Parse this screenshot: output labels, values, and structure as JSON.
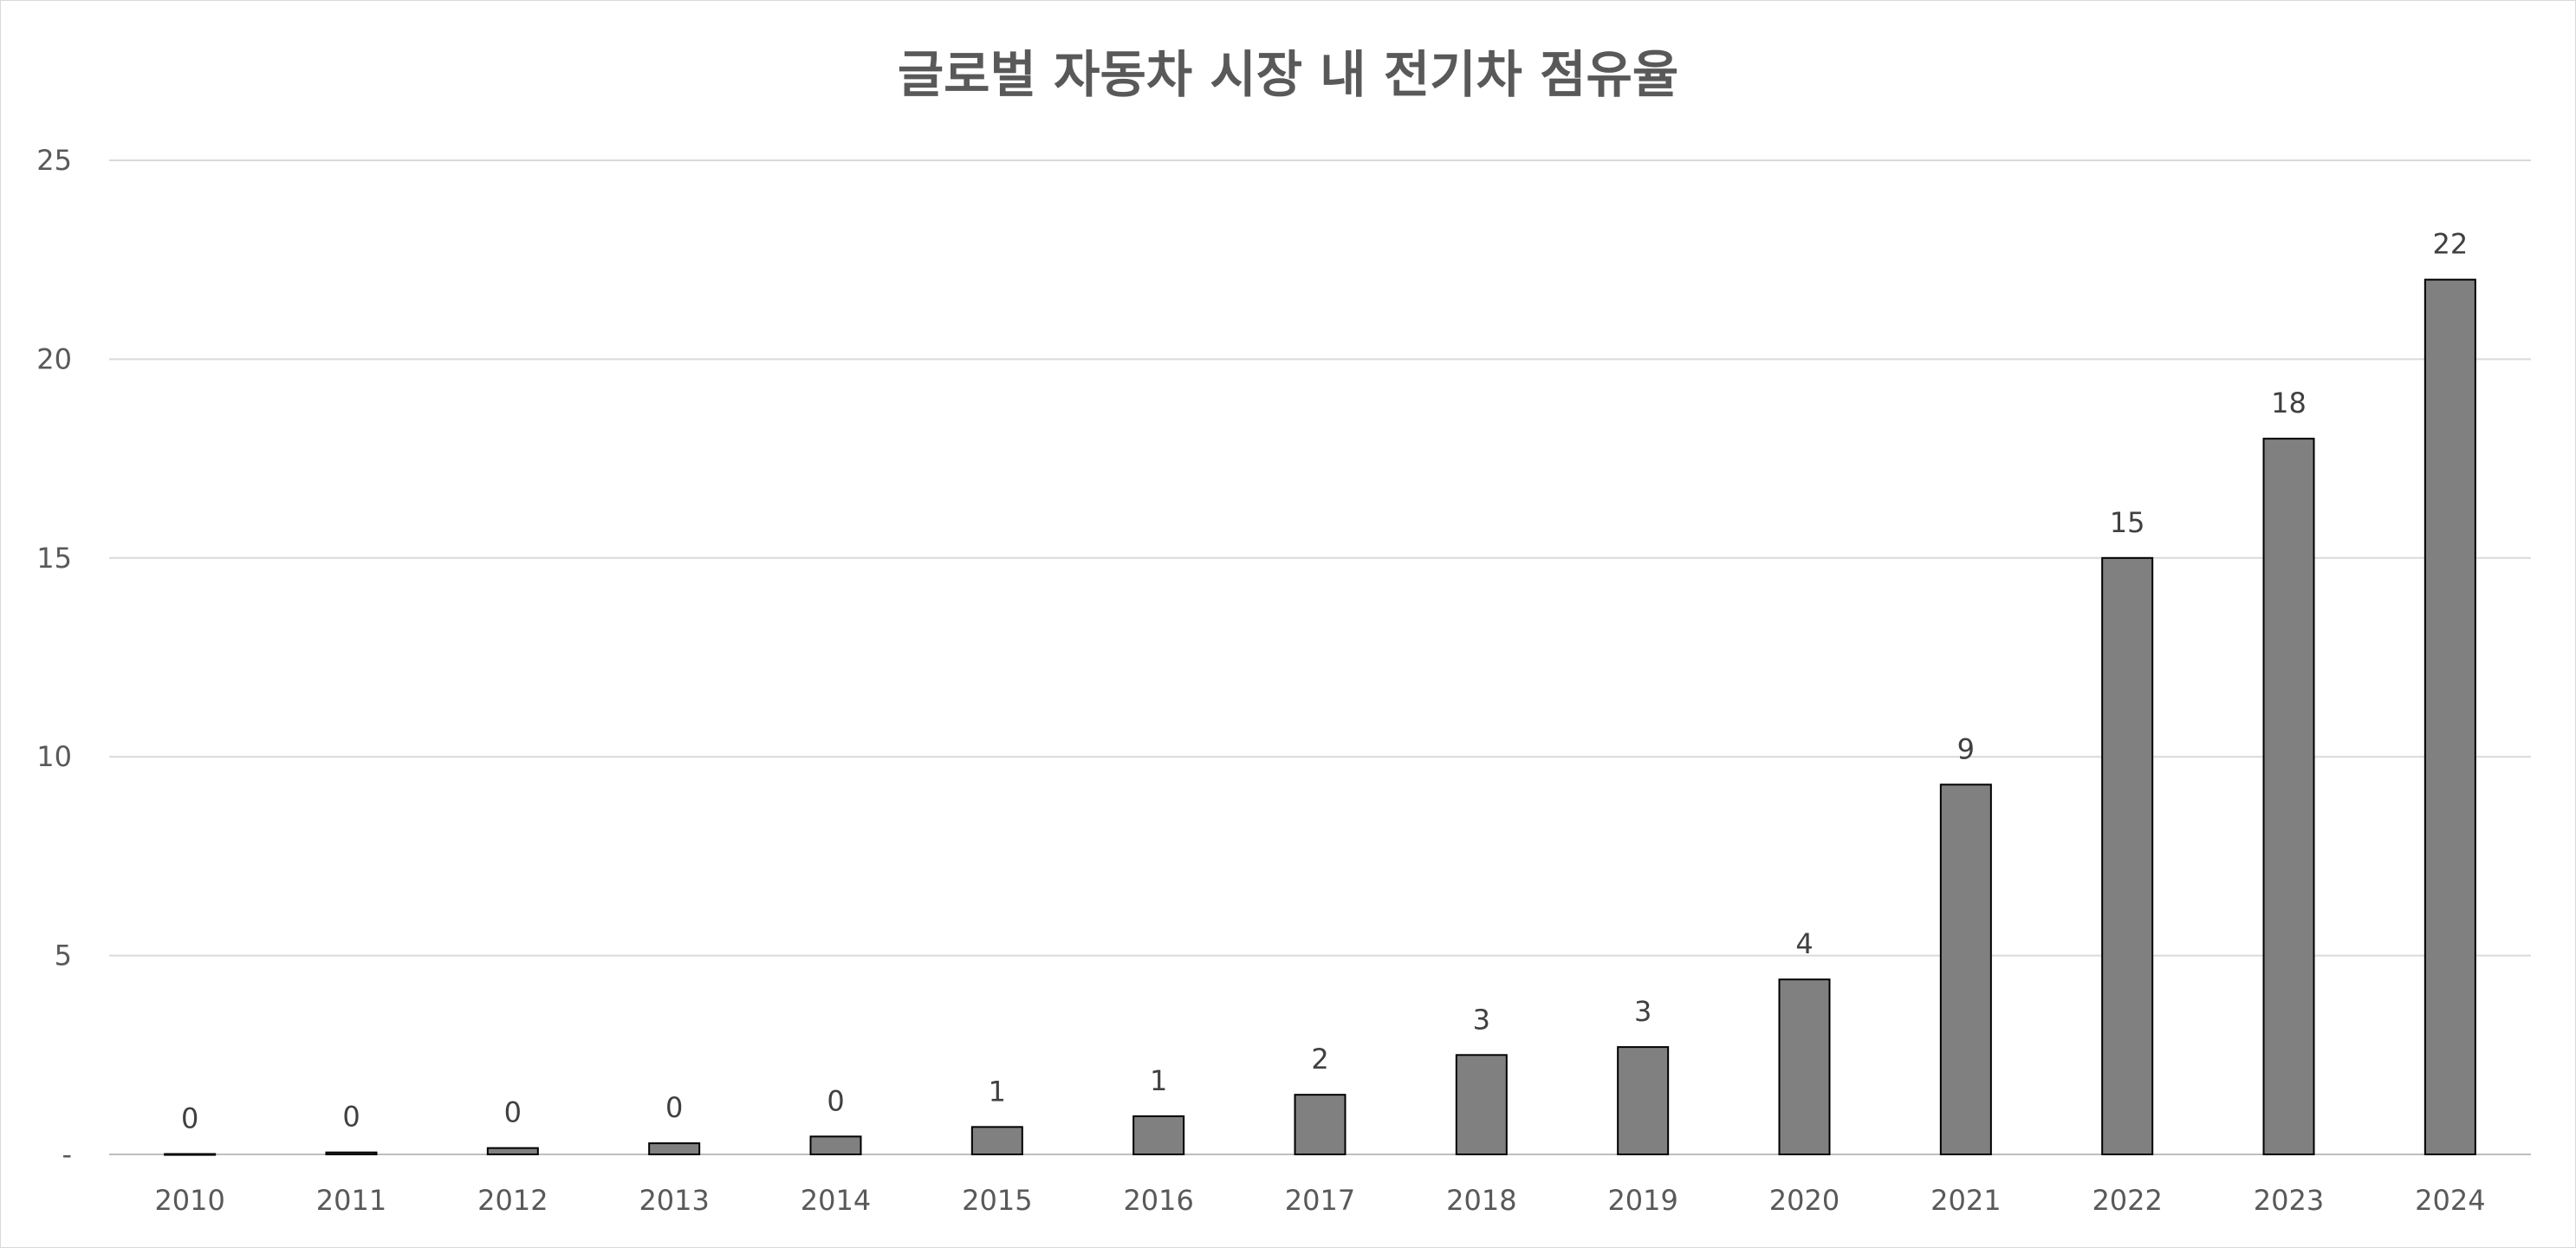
{
  "chart_data": {
    "type": "bar",
    "title": "글로벌 자동차 시장 내 전기차 점유율",
    "xlabel": "",
    "ylabel": "",
    "categories": [
      "2010",
      "2011",
      "2012",
      "2013",
      "2014",
      "2015",
      "2016",
      "2017",
      "2018",
      "2019",
      "2020",
      "2021",
      "2022",
      "2023",
      "2024"
    ],
    "values": [
      0.01,
      0.05,
      0.16,
      0.28,
      0.45,
      0.69,
      0.96,
      1.5,
      2.5,
      2.7,
      4.4,
      9.3,
      15,
      18,
      22
    ],
    "data_labels": [
      "0",
      "0",
      "0",
      "0",
      "0",
      "1",
      "1",
      "2",
      "3",
      "3",
      "4",
      "9",
      "15",
      "18",
      "22"
    ],
    "ylim": [
      0,
      25
    ],
    "yticks": [
      0,
      5,
      10,
      15,
      20,
      25
    ],
    "ytick_labels": [
      "-",
      "5",
      "10",
      "15",
      "20",
      "25"
    ],
    "grid": true,
    "legend": "none",
    "colors": {
      "bar_fill": "#808080",
      "bar_stroke": "#000000",
      "grid": "#d9d9d9",
      "text": "#595959"
    }
  }
}
